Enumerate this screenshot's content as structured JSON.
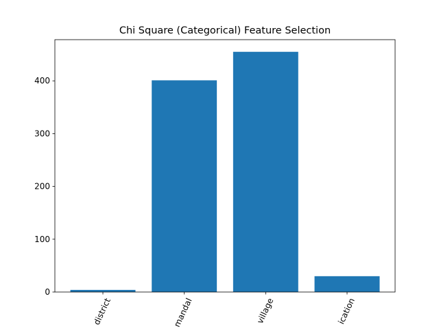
{
  "chart_data": {
    "type": "bar",
    "title": "Chi Square (Categorical) Feature Selection",
    "xlabel": "",
    "ylabel": "",
    "categories": [
      "district",
      "mandal",
      "village",
      "location"
    ],
    "category_labels_visible": [
      "district",
      "mandal",
      "village",
      "ication"
    ],
    "values": [
      4,
      401,
      455,
      30
    ],
    "ylim": [
      0,
      478
    ],
    "yticks": [
      0,
      100,
      200,
      300,
      400
    ],
    "ytick_labels": [
      "0",
      "100",
      "200",
      "300",
      "400"
    ],
    "xtick_rotation_deg": 65,
    "bar_color": "#1f77b4",
    "grid": false,
    "legend": "none"
  }
}
